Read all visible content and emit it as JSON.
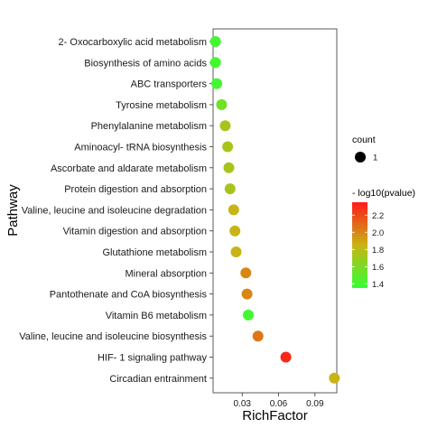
{
  "chart_data": {
    "type": "scatter",
    "xlabel": "RichFactor",
    "ylabel": "Pathway",
    "xlim": [
      0.006,
      0.108
    ],
    "xticks": [
      0.03,
      0.06,
      0.09
    ],
    "x_tick_labels": [
      "0.03",
      "0.06",
      "0.09"
    ],
    "grid": false,
    "legend_position": "right",
    "categories": [
      "2- Oxocarboxylic acid metabolism",
      "Biosynthesis of amino acids",
      "ABC transporters",
      "Tyrosine metabolism",
      "Phenylalanine metabolism",
      "Aminoacyl- tRNA biosynthesis",
      "Ascorbate and aldarate metabolism",
      "Protein digestion and absorption",
      "Valine, leucine and isoleucine degradation",
      "Vitamin digestion and absorption",
      "Glutathione metabolism",
      "Mineral absorption",
      "Pantothenate and CoA biosynthesis",
      "Vitamin B6 metabolism",
      "Valine, leucine and isoleucine biosynthesis",
      "HIF- 1 signaling pathway",
      "Circadian entrainment"
    ],
    "rich_factor": [
      0.008,
      0.008,
      0.009,
      0.013,
      0.016,
      0.018,
      0.019,
      0.02,
      0.023,
      0.024,
      0.025,
      0.033,
      0.034,
      0.035,
      0.043,
      0.066,
      0.106
    ],
    "neg_log10_pvalue": [
      1.4,
      1.4,
      1.4,
      1.55,
      1.75,
      1.75,
      1.75,
      1.75,
      1.85,
      1.85,
      1.85,
      2.0,
      2.0,
      1.4,
      2.05,
      2.3,
      1.85
    ],
    "count": [
      1,
      1,
      1,
      1,
      1,
      1,
      1,
      1,
      1,
      1,
      1,
      1,
      1,
      1,
      1,
      1,
      1
    ],
    "size_legend": {
      "title": "count",
      "labels": [
        "1"
      ]
    },
    "color_legend": {
      "title": "- log10(pvalue)",
      "range": [
        1.35,
        2.35
      ],
      "ticks": [
        1.4,
        1.6,
        1.8,
        2.0,
        2.2
      ],
      "tick_labels": [
        "1.4",
        "1.6",
        "1.8",
        "2.0",
        "2.2"
      ],
      "low_color": "#33ff33",
      "mid_color": "#c8b414",
      "high_color": "#ff1a1a"
    }
  }
}
